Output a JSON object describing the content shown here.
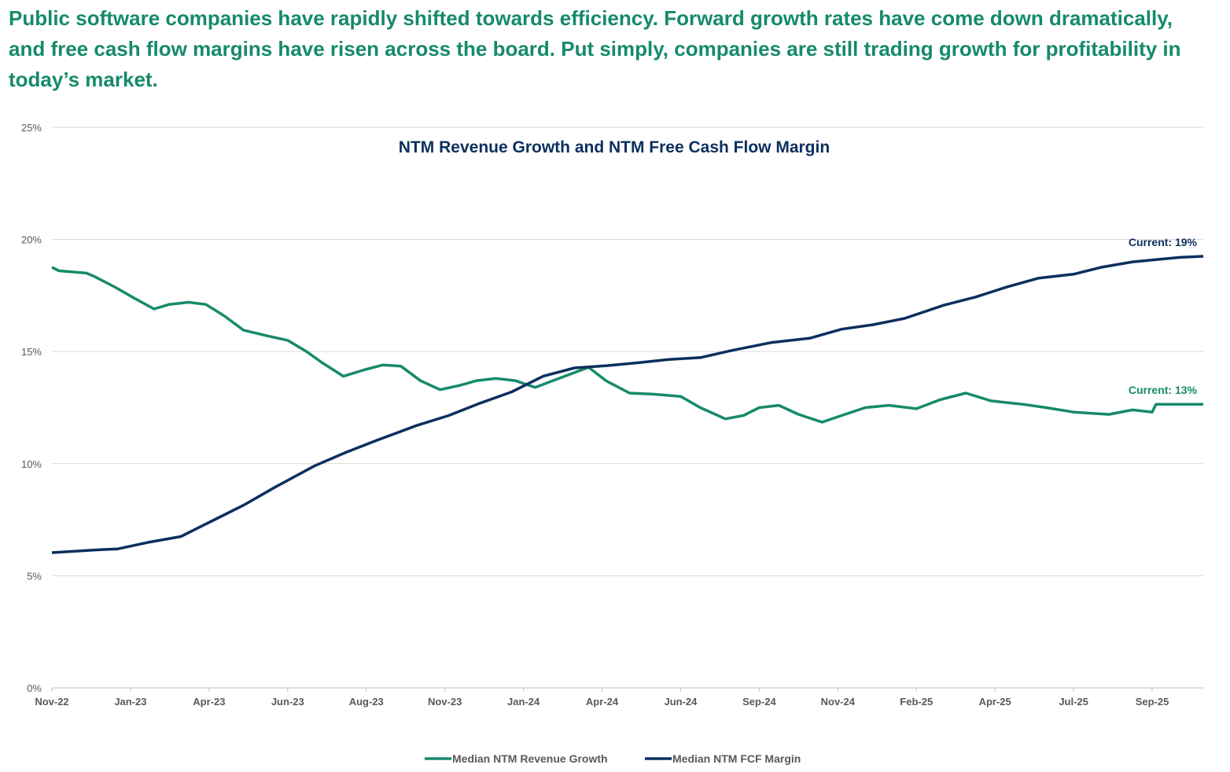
{
  "headline": "Public software companies have rapidly shifted towards efficiency. Forward growth rates have come down dramatically, and free cash flow margins have risen across the board. Put simply, companies are still trading growth for profitability in today’s market.",
  "chart_data": {
    "type": "line",
    "title": "NTM Revenue Growth and NTM Free Cash Flow Margin",
    "xlabel": "",
    "ylabel": "",
    "x_tick_labels": [
      "Nov-22",
      "Jan-23",
      "Apr-23",
      "Jun-23",
      "Aug-23",
      "Nov-23",
      "Jan-24",
      "Apr-24",
      "Jun-24",
      "Sep-24",
      "Nov-24",
      "Feb-25",
      "Apr-25",
      "Jul-25",
      "Sep-25"
    ],
    "x_note": "x values are period index; each integer corresponds to the tick label at that index",
    "xlim": [
      0,
      14.65
    ],
    "y_tick_labels": [
      "0%",
      "5%",
      "10%",
      "15%",
      "20%",
      "25%"
    ],
    "ylim": [
      0,
      25
    ],
    "grid": true,
    "legend_position": "bottom",
    "series": [
      {
        "name": "Median NTM Revenue Growth",
        "color": "#168a6b",
        "end_label": "Current: 13%",
        "x": [
          0,
          0.09,
          0.44,
          0.54,
          0.79,
          1.04,
          1.3,
          1.49,
          1.74,
          1.96,
          2.19,
          2.44,
          2.74,
          3.0,
          3.24,
          3.44,
          3.71,
          3.99,
          4.21,
          4.44,
          4.69,
          4.94,
          5.2,
          5.4,
          5.65,
          5.9,
          6.15,
          6.45,
          6.83,
          7.05,
          7.35,
          7.65,
          8.0,
          8.25,
          8.57,
          8.8,
          9.0,
          9.25,
          9.5,
          9.8,
          10.05,
          10.35,
          10.65,
          11.0,
          11.3,
          11.63,
          11.95,
          12.35,
          12.65,
          13.0,
          13.45,
          13.75,
          14.0,
          14.05,
          14.25,
          14.65
        ],
        "y": [
          18.76,
          18.6,
          18.5,
          18.35,
          17.9,
          17.4,
          16.9,
          17.1,
          17.2,
          17.1,
          16.6,
          15.95,
          15.7,
          15.5,
          15.0,
          14.5,
          13.9,
          14.2,
          14.4,
          14.35,
          13.7,
          13.3,
          13.5,
          13.7,
          13.8,
          13.7,
          13.4,
          13.8,
          14.3,
          13.7,
          13.15,
          13.1,
          13.0,
          12.5,
          12.0,
          12.15,
          12.5,
          12.6,
          12.2,
          11.85,
          12.15,
          12.5,
          12.6,
          12.45,
          12.85,
          13.15,
          12.8,
          12.65,
          12.5,
          12.3,
          12.2,
          12.4,
          12.3,
          12.65,
          12.65,
          12.65
        ]
      },
      {
        "name": "Median NTM FCF Margin",
        "color": "#0b2f5e",
        "end_label": "Current: 19%",
        "x": [
          0,
          0.54,
          0.84,
          1.24,
          1.64,
          2.04,
          2.44,
          2.84,
          3.34,
          3.74,
          4.14,
          4.64,
          5.05,
          5.45,
          5.85,
          6.25,
          6.65,
          7.05,
          7.45,
          7.85,
          8.25,
          8.65,
          9.15,
          9.65,
          10.05,
          10.45,
          10.85,
          11.35,
          11.75,
          12.15,
          12.55,
          13.0,
          13.35,
          13.75,
          14.05,
          14.35,
          14.65
        ],
        "y": [
          6.03,
          6.15,
          6.2,
          6.5,
          6.75,
          7.45,
          8.15,
          8.95,
          9.9,
          10.5,
          11.05,
          11.7,
          12.15,
          12.7,
          13.2,
          13.9,
          14.27,
          14.37,
          14.5,
          14.65,
          14.73,
          15.05,
          15.4,
          15.6,
          16.0,
          16.2,
          16.48,
          17.07,
          17.43,
          17.88,
          18.27,
          18.45,
          18.76,
          19.0,
          19.1,
          19.2,
          19.25
        ]
      }
    ]
  }
}
